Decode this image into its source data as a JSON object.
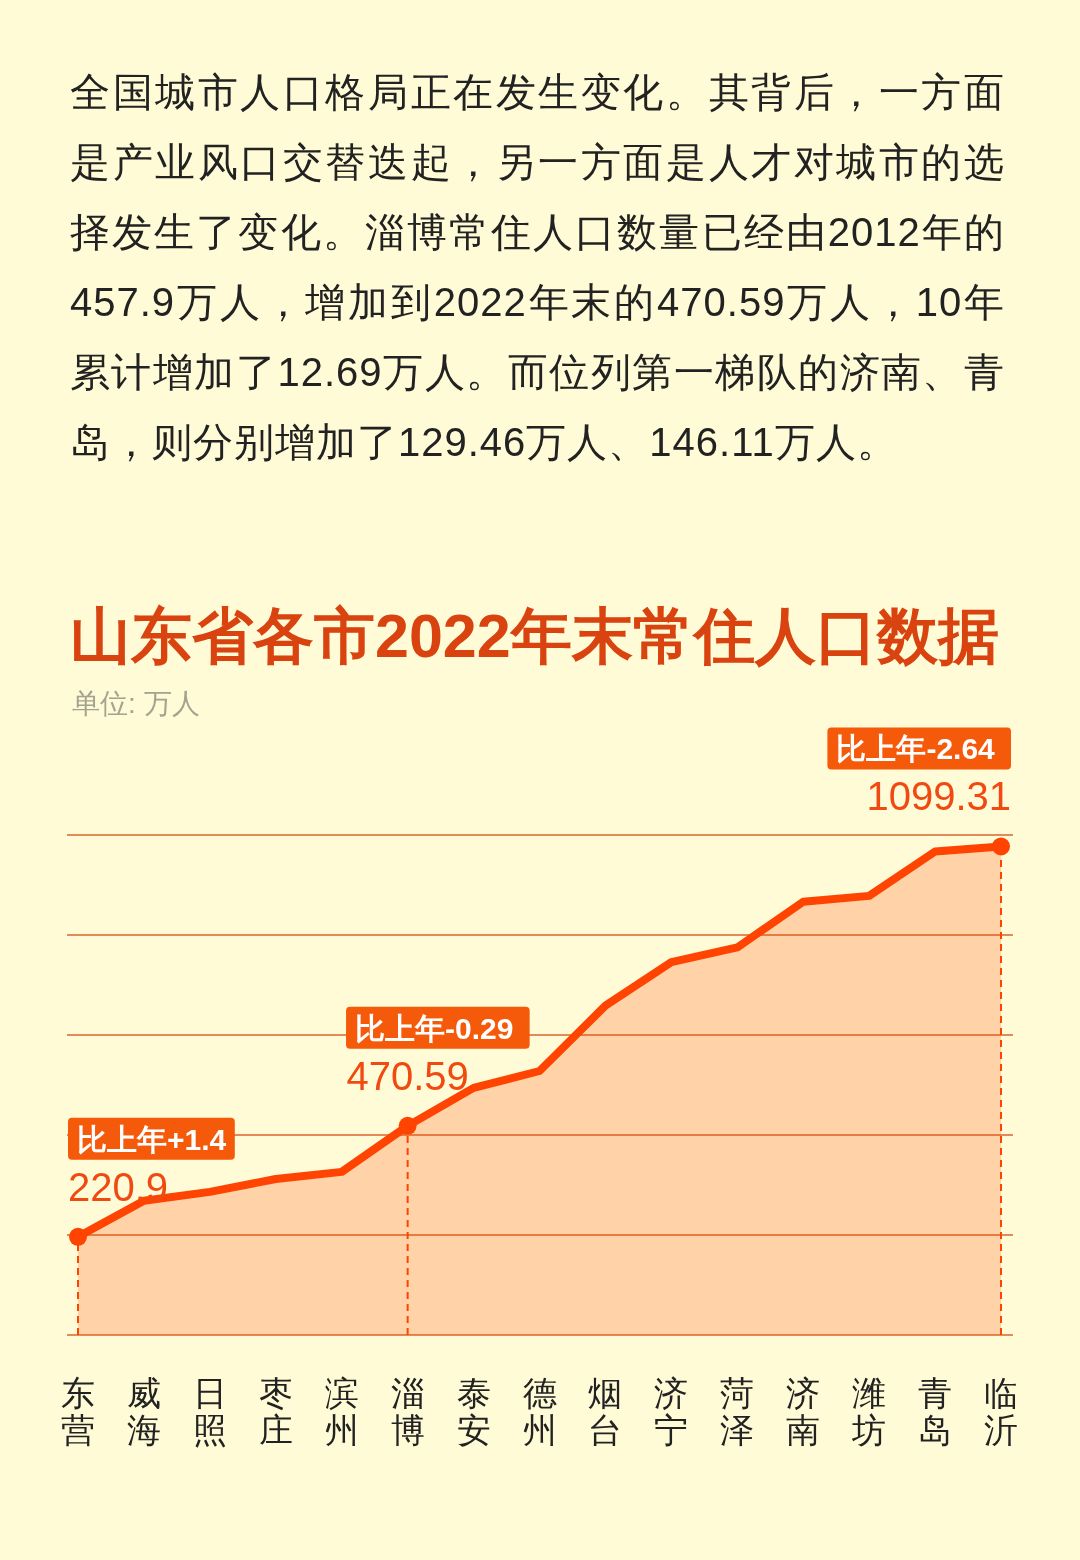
{
  "chart_data": {
    "type": "area",
    "title": "山东省各市2022年末常住人口数据",
    "subtitle": "单位: 万人",
    "categories": [
      "东营",
      "威海",
      "日照",
      "枣庄",
      "滨州",
      "淄博",
      "泰安",
      "德州",
      "烟台",
      "济宁",
      "菏泽",
      "济南",
      "潍坊",
      "青岛",
      "临沂"
    ],
    "series": [
      {
        "color": "#ff4300",
        "values": [
          220.9,
          302,
          322,
          351,
          367,
          470.59,
          556,
          594,
          741,
          839,
          872,
          975,
          988,
          1088,
          1099.31
        ]
      },
      {
        "type": "lollipop",
        "color": "#ff4300",
        "marker": "circle",
        "line_style": "dashed",
        "x": [
          "东营",
          "淄博",
          "临沂"
        ],
        "values": [
          220.9,
          470.59,
          1099.31
        ],
        "value_labels": [
          "220.9",
          "470.59",
          "1099.31"
        ]
      }
    ],
    "ylim": [
      0,
      1125
    ],
    "yticks": [
      {
        "value": 0,
        "label": null
      },
      {
        "value": 225,
        "label": null
      },
      {
        "value": 450,
        "label": null
      },
      {
        "value": 675,
        "label": null
      },
      {
        "value": 900,
        "label": null
      },
      {
        "value": 1125,
        "label": null
      }
    ],
    "grid": "y",
    "tick_labels": "x",
    "annotations": [
      "全国城市人口格局正在发生变化。其背后，一方面是产业风口交替迭起，另一方面是人才对城市的选择发生了变化。淄博常住人口数量已经由2012年的457.9万人，增加到2022年末的470.59万人，10年累计增加了12.69万人。而位列第一梯队的济南、青岛，则分别增加了129.46万人、146.11万人。",
      {
        "text": "比上年+1.4",
        "x": "东营",
        "y": 220.9
      },
      {
        "text": "比上年-0.29",
        "x": "淄博",
        "y": 470.59
      },
      {
        "text": "比上年-2.64",
        "x": "临沂",
        "y": 1099.31
      }
    ]
  }
}
